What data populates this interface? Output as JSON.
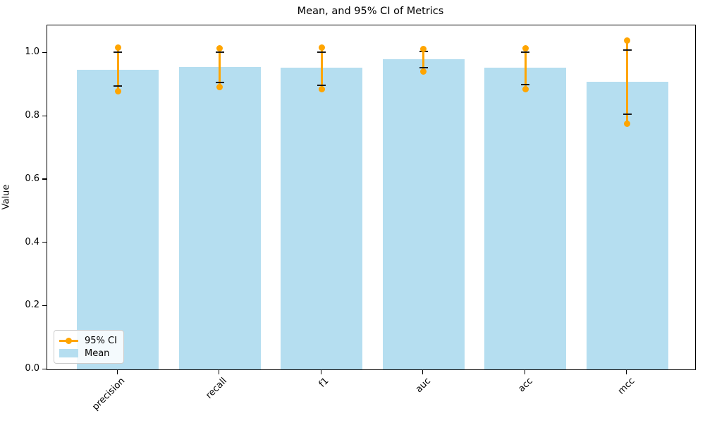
{
  "chart_data": {
    "type": "bar",
    "title": "Mean, and 95% CI of Metrics",
    "xlabel": "",
    "ylabel": "Value",
    "categories": [
      "precision",
      "recall",
      "f1",
      "auc",
      "acc",
      "mcc"
    ],
    "series": [
      {
        "name": "Mean",
        "type": "bar",
        "values": [
          0.948,
          0.956,
          0.954,
          0.98,
          0.954,
          0.91
        ]
      },
      {
        "name": "95% CI",
        "type": "errorbar",
        "upper": [
          1.018,
          1.016,
          1.018,
          1.013,
          1.016,
          1.041
        ],
        "lower": [
          0.879,
          0.893,
          0.886,
          0.943,
          0.886,
          0.778
        ],
        "cap_upper": [
          1.003,
          1.003,
          1.003,
          1.005,
          1.003,
          1.011
        ],
        "cap_lower": [
          0.896,
          0.907,
          0.898,
          0.955,
          0.901,
          0.806
        ]
      }
    ],
    "ylim": [
      0,
      1.088
    ],
    "ytick_values": [
      0.0,
      0.2,
      0.4,
      0.6,
      0.8,
      1.0
    ],
    "ytick_labels": [
      "0.0",
      "0.2",
      "0.4",
      "0.6",
      "0.8",
      "1.0"
    ],
    "grid": false,
    "legend": {
      "position": "lower left",
      "items": [
        {
          "label": "95% CI",
          "marker": "line-dot",
          "color": "#FFA500"
        },
        {
          "label": "Mean",
          "marker": "patch",
          "color": "#B5DEF0"
        }
      ]
    },
    "colors": {
      "bar": "#B5DEF0",
      "ci_line": "#FFA500",
      "cap": "#1a1a1a",
      "axis": "#000000"
    }
  }
}
